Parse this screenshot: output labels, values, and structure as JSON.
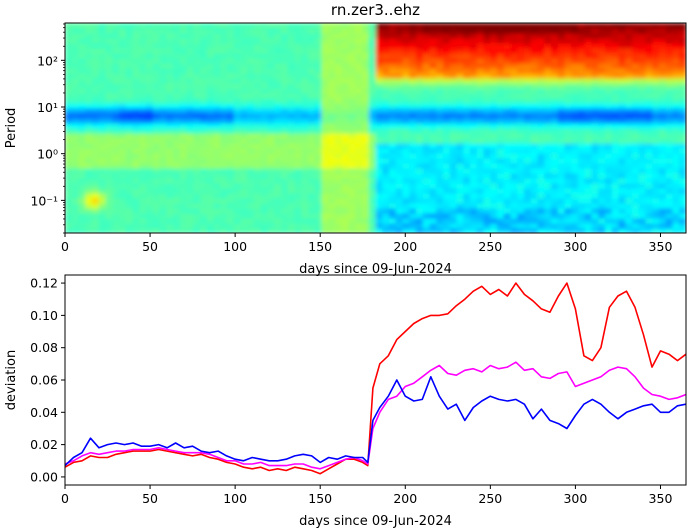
{
  "title": "rn.zer3..ehz",
  "chart_data": [
    {
      "type": "heatmap",
      "title": "rn.zer3..ehz",
      "xlabel": "days since 09-Jun-2024",
      "ylabel": "Period",
      "xlim": [
        0,
        365
      ],
      "ylim": [
        0.02,
        630
      ],
      "yscale": "log",
      "x_ticks": [
        0,
        50,
        100,
        150,
        200,
        250,
        300,
        350
      ],
      "y_ticks": [
        {
          "value": 0.1,
          "label": "10⁻¹"
        },
        {
          "value": 1,
          "label": "10⁰"
        },
        {
          "value": 10,
          "label": "10¹"
        },
        {
          "value": 100,
          "label": "10²"
        }
      ],
      "colormap": "jet",
      "features": [
        {
          "name": "long-period high energy (red)",
          "x_range": [
            182,
            365
          ],
          "period_range": [
            60,
            630
          ]
        },
        {
          "name": "low energy band (blue)",
          "x_range": [
            0,
            365
          ],
          "period_range": [
            3,
            12
          ]
        },
        {
          "name": "quiet window (yellow-green)",
          "x_range": [
            150,
            180
          ],
          "period_range": [
            0.02,
            630
          ]
        }
      ]
    },
    {
      "type": "line",
      "xlabel": "days since 09-Jun-2024",
      "ylabel": "deviation",
      "xlim": [
        0,
        365
      ],
      "ylim": [
        -0.005,
        0.125
      ],
      "x_ticks": [
        0,
        50,
        100,
        150,
        200,
        250,
        300,
        350
      ],
      "y_ticks": [
        0.0,
        0.02,
        0.04,
        0.06,
        0.08,
        0.1,
        0.12
      ],
      "y_tick_labels": [
        "0.00",
        "0.02",
        "0.04",
        "0.06",
        "0.08",
        "0.10",
        "0.12"
      ],
      "grid": false,
      "x": [
        0,
        5,
        10,
        15,
        20,
        25,
        30,
        35,
        40,
        45,
        50,
        55,
        60,
        65,
        70,
        75,
        80,
        85,
        90,
        95,
        100,
        105,
        110,
        115,
        120,
        125,
        130,
        135,
        140,
        145,
        150,
        155,
        160,
        165,
        170,
        175,
        178,
        181,
        185,
        190,
        195,
        200,
        205,
        210,
        215,
        220,
        225,
        230,
        235,
        240,
        245,
        250,
        255,
        260,
        265,
        270,
        275,
        280,
        285,
        290,
        295,
        300,
        305,
        310,
        315,
        320,
        325,
        330,
        335,
        340,
        345,
        350,
        355,
        360,
        365
      ],
      "series": [
        {
          "color": "#ff0000",
          "values": [
            0.006,
            0.009,
            0.01,
            0.013,
            0.012,
            0.012,
            0.014,
            0.015,
            0.016,
            0.016,
            0.016,
            0.017,
            0.016,
            0.015,
            0.014,
            0.013,
            0.014,
            0.012,
            0.011,
            0.009,
            0.008,
            0.006,
            0.005,
            0.006,
            0.004,
            0.005,
            0.004,
            0.006,
            0.005,
            0.004,
            0.002,
            0.005,
            0.008,
            0.011,
            0.011,
            0.009,
            0.007,
            0.055,
            0.07,
            0.075,
            0.085,
            0.09,
            0.095,
            0.098,
            0.1,
            0.1,
            0.101,
            0.106,
            0.11,
            0.115,
            0.118,
            0.113,
            0.116,
            0.112,
            0.12,
            0.113,
            0.109,
            0.104,
            0.102,
            0.112,
            0.12,
            0.104,
            0.075,
            0.072,
            0.08,
            0.105,
            0.112,
            0.115,
            0.105,
            0.088,
            0.068,
            0.078,
            0.076,
            0.072,
            0.076
          ]
        },
        {
          "color": "#ff00ff",
          "values": [
            0.008,
            0.01,
            0.013,
            0.015,
            0.014,
            0.015,
            0.016,
            0.016,
            0.017,
            0.017,
            0.017,
            0.018,
            0.017,
            0.016,
            0.015,
            0.015,
            0.015,
            0.014,
            0.012,
            0.01,
            0.01,
            0.008,
            0.008,
            0.009,
            0.007,
            0.007,
            0.007,
            0.008,
            0.008,
            0.006,
            0.005,
            0.007,
            0.009,
            0.011,
            0.012,
            0.01,
            0.008,
            0.03,
            0.04,
            0.048,
            0.05,
            0.056,
            0.058,
            0.062,
            0.066,
            0.069,
            0.064,
            0.063,
            0.066,
            0.067,
            0.065,
            0.069,
            0.067,
            0.068,
            0.071,
            0.066,
            0.067,
            0.062,
            0.061,
            0.064,
            0.065,
            0.056,
            0.058,
            0.06,
            0.062,
            0.066,
            0.068,
            0.067,
            0.062,
            0.055,
            0.051,
            0.05,
            0.048,
            0.049,
            0.051
          ]
        },
        {
          "color": "#0000ff",
          "values": [
            0.007,
            0.012,
            0.015,
            0.024,
            0.018,
            0.02,
            0.021,
            0.02,
            0.021,
            0.019,
            0.019,
            0.02,
            0.018,
            0.021,
            0.018,
            0.019,
            0.016,
            0.015,
            0.016,
            0.013,
            0.011,
            0.01,
            0.012,
            0.011,
            0.01,
            0.01,
            0.011,
            0.013,
            0.014,
            0.013,
            0.009,
            0.012,
            0.011,
            0.013,
            0.012,
            0.012,
            0.009,
            0.035,
            0.043,
            0.05,
            0.06,
            0.05,
            0.047,
            0.048,
            0.062,
            0.05,
            0.042,
            0.045,
            0.035,
            0.043,
            0.047,
            0.05,
            0.048,
            0.047,
            0.048,
            0.045,
            0.036,
            0.042,
            0.035,
            0.033,
            0.03,
            0.038,
            0.045,
            0.048,
            0.045,
            0.04,
            0.036,
            0.04,
            0.042,
            0.044,
            0.045,
            0.04,
            0.04,
            0.044,
            0.045
          ]
        }
      ]
    }
  ]
}
